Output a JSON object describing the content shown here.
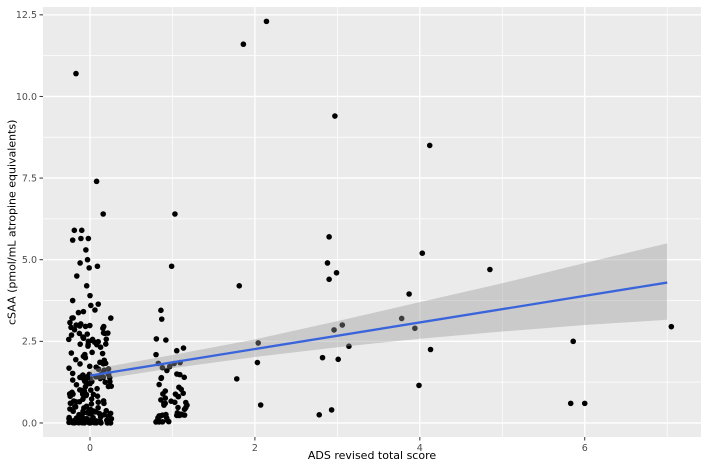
{
  "figure": {
    "panel_background": "#EBEBEB",
    "grid_color": "#FFFFFF",
    "point_color": "#000000",
    "line_color": "#3A64DB",
    "band_color": "#999999",
    "band_opacity": 0.4,
    "tick_color": "#333333",
    "tick_label_color": "#4D4D4D"
  },
  "chart_data": {
    "type": "scatter",
    "title": "",
    "xlabel": "ADS revised total score",
    "ylabel": "cSAA (pmol/mL atropine equivalents)",
    "xlim": [
      -0.57,
      7.41
    ],
    "ylim": [
      -0.43,
      12.74
    ],
    "grid": true,
    "legend": "none",
    "x_tick_values": [
      0,
      2,
      4,
      6
    ],
    "x_tick_labels": [
      "0",
      "2",
      "4",
      "6"
    ],
    "x_minor_ticks": [
      1,
      3,
      5,
      7
    ],
    "y_tick_values": [
      0,
      2.5,
      5,
      7.5,
      10,
      12.5
    ],
    "y_tick_labels": [
      "0.0",
      "2.5",
      "5.0",
      "7.5",
      "10.0",
      "12.5"
    ],
    "y_minor_ticks": [
      1.25,
      3.75,
      6.25,
      8.75,
      11.25
    ],
    "points": [
      [
        -0.17,
        10.7
      ],
      [
        0.08,
        7.4
      ],
      [
        0.16,
        6.4
      ],
      [
        -0.19,
        5.9
      ],
      [
        -0.1,
        5.9
      ],
      [
        -0.21,
        5.6
      ],
      [
        -0.11,
        5.65
      ],
      [
        -0.02,
        5.65
      ],
      [
        -0.05,
        5.3
      ],
      [
        -0.03,
        5.0
      ],
      [
        -0.12,
        4.9
      ],
      [
        0.09,
        4.8
      ],
      [
        -0.01,
        4.75
      ],
      [
        -0.16,
        4.5
      ],
      [
        -0.04,
        4.2
      ],
      [
        0.0,
        3.9
      ],
      [
        -0.21,
        3.75
      ],
      [
        0.1,
        3.64
      ],
      [
        0.01,
        3.6
      ],
      [
        0.06,
        3.46
      ],
      [
        -0.08,
        3.41
      ],
      [
        -0.14,
        3.38
      ],
      [
        1.03,
        6.4
      ],
      [
        0.99,
        4.8
      ],
      [
        0.86,
        3.45
      ],
      [
        0.87,
        3.18
      ],
      [
        1.78,
        1.35
      ],
      [
        1.81,
        4.2
      ],
      [
        1.86,
        11.6
      ],
      [
        2.03,
        1.85
      ],
      [
        2.04,
        2.45
      ],
      [
        2.07,
        0.55
      ],
      [
        2.14,
        12.3
      ],
      [
        2.78,
        0.25
      ],
      [
        2.82,
        2.0
      ],
      [
        2.88,
        4.9
      ],
      [
        2.9,
        5.7
      ],
      [
        2.9,
        4.4
      ],
      [
        2.93,
        0.4
      ],
      [
        2.96,
        2.85
      ],
      [
        2.97,
        9.4
      ],
      [
        2.99,
        4.6
      ],
      [
        3.01,
        1.95
      ],
      [
        3.06,
        3.0
      ],
      [
        3.14,
        2.35
      ],
      [
        3.78,
        3.2
      ],
      [
        3.87,
        3.95
      ],
      [
        3.94,
        2.9
      ],
      [
        3.99,
        1.15
      ],
      [
        4.03,
        5.2
      ],
      [
        4.12,
        8.5
      ],
      [
        4.13,
        2.25
      ],
      [
        4.85,
        4.7
      ],
      [
        5.83,
        0.6
      ],
      [
        5.86,
        2.5
      ],
      [
        6.0,
        0.6
      ],
      [
        7.05,
        2.95
      ]
    ],
    "jitter_clusters": [
      {
        "x_center": 0,
        "x_spread": 0.26,
        "n": 185,
        "y_min": 0.0,
        "y_max": 3.35,
        "skew": 2.1,
        "seed": 7
      },
      {
        "x_center": 1,
        "x_spread": 0.2,
        "n": 56,
        "y_min": 0.03,
        "y_max": 2.6,
        "skew": 1.7,
        "seed": 11
      }
    ],
    "regression_line": {
      "x": [
        0,
        7
      ],
      "y": [
        1.45,
        4.3
      ]
    },
    "ci_band": {
      "x": [
        0,
        1,
        2,
        3,
        4,
        5,
        6,
        7
      ],
      "upper": [
        1.63,
        2.08,
        2.56,
        3.12,
        3.7,
        4.28,
        4.9,
        5.5
      ],
      "lower": [
        1.28,
        1.68,
        2.02,
        2.32,
        2.58,
        2.8,
        3.0,
        3.16
      ]
    }
  }
}
